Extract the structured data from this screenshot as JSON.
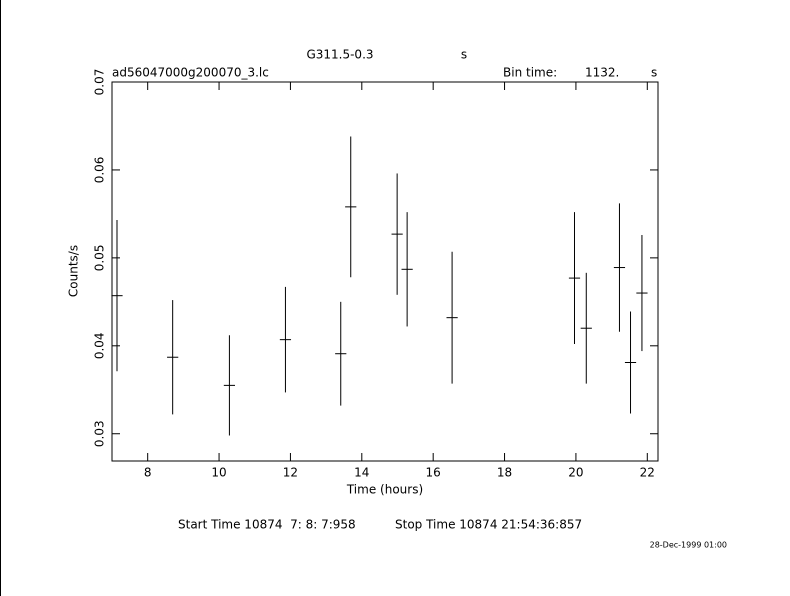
{
  "chart_data": {
    "type": "errorbar",
    "title": "G311.5-0.3",
    "title_unit": "s",
    "file_label": "ad56047000g200070_3.lc",
    "bin_time_label": "Bin time:",
    "bin_time": "1132.",
    "bin_time_unit": "s",
    "x_label": "Time (hours)",
    "y_label": "Counts/s",
    "start_time": "Start Time 10874  7: 8: 7:958",
    "stop_time": "Stop Time 10874 21:54:36:857",
    "date_stamp": "28-Dec-1999 01:00",
    "x": [
      7.14,
      8.7,
      10.29,
      11.86,
      13.41,
      13.69,
      14.99,
      15.27,
      16.53,
      19.96,
      20.29,
      21.22,
      21.53,
      21.85
    ],
    "values": [
      0.0457,
      0.0387,
      0.0355,
      0.0407,
      0.0391,
      0.0558,
      0.0527,
      0.0487,
      0.0432,
      0.0477,
      0.042,
      0.0489,
      0.0381,
      0.046
    ],
    "errors": [
      0.0086,
      0.0065,
      0.0057,
      0.006,
      0.0059,
      0.008,
      0.0069,
      0.0065,
      0.0075,
      0.0075,
      0.0063,
      0.0073,
      0.0058,
      0.0066
    ],
    "xerr": 0.157,
    "color": "#000000",
    "xlim": [
      7.0,
      22.3
    ],
    "ylim": [
      0.0269,
      0.07
    ],
    "xticks": [
      8,
      10,
      12,
      14,
      16,
      18,
      20,
      22
    ],
    "yticks": [
      0.03,
      0.04,
      0.05,
      0.06,
      0.07
    ]
  }
}
